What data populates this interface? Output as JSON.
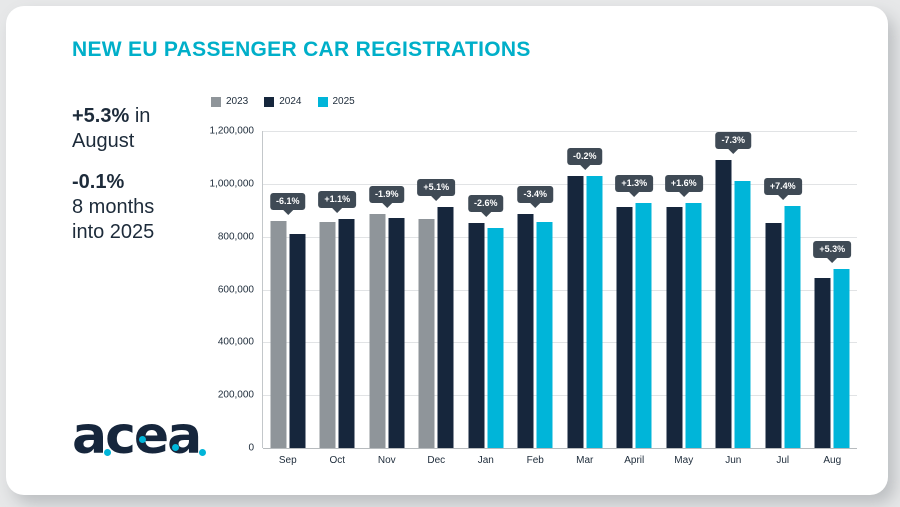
{
  "page": {
    "title": "NEW EU PASSENGER CAR REGISTRATIONS"
  },
  "highlights": {
    "stat1_value": "+5.3%",
    "stat1_suffix": " in",
    "stat1_line2": "August",
    "stat2_value": "-0.1%",
    "stat2_line2": "8 months",
    "stat2_line3": "into 2025"
  },
  "brand": {
    "logo_text": "acea"
  },
  "colors": {
    "accent_cyan": "#00afc9",
    "navy": "#16263c",
    "gray": "#8f959a",
    "badge_bg": "#3f4a55"
  },
  "chart_data": {
    "type": "bar",
    "title": "NEW EU PASSENGER CAR REGISTRATIONS",
    "categories": [
      "Sep",
      "Oct",
      "Nov",
      "Dec",
      "Jan",
      "Feb",
      "Mar",
      "April",
      "May",
      "Jun",
      "Jul",
      "Aug"
    ],
    "series": [
      {
        "name": "2023",
        "color": "#8f959a",
        "values": [
          861000,
          857000,
          885000,
          867000,
          null,
          null,
          null,
          null,
          null,
          null,
          null,
          null
        ]
      },
      {
        "name": "2024",
        "color": "#16263c",
        "values": [
          809000,
          866000,
          869000,
          911000,
          853000,
          884000,
          1031000,
          914000,
          912000,
          1089000,
          852000,
          644000
        ]
      },
      {
        "name": "2025",
        "color": "#00b5d9",
        "values": [
          null,
          null,
          null,
          null,
          831000,
          854000,
          1029000,
          926000,
          927000,
          1010000,
          915000,
          678000
        ]
      }
    ],
    "labels": [
      "-6.1%",
      "+1.1%",
      "-1.9%",
      "+5.1%",
      "-2.6%",
      "-3.4%",
      "-0.2%",
      "+1.3%",
      "+1.6%",
      "-7.3%",
      "+7.4%",
      "+5.3%"
    ],
    "y_ticks": [
      "0",
      "200,000",
      "400,000",
      "600,000",
      "800,000",
      "1,000,000",
      "1,200,000"
    ],
    "ylim": [
      0,
      1200000
    ],
    "grid": true,
    "legend_position": "top-left"
  }
}
